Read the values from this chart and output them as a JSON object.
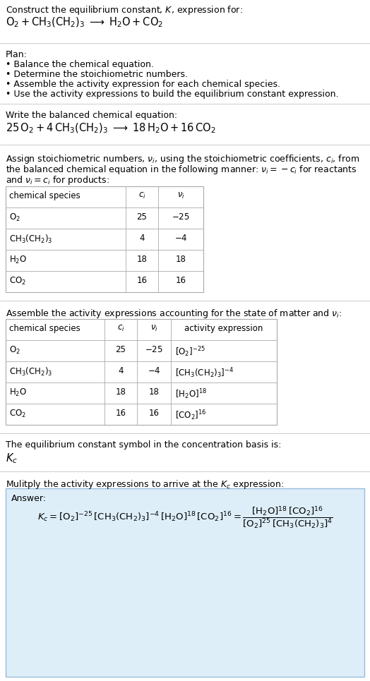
{
  "bg_color": "#ffffff",
  "answer_box_color": "#ddeef8",
  "answer_box_edge": "#99bbdd",
  "font_size": 9.0,
  "font_size_small": 8.5,
  "font_size_math": 10.5,
  "title": "Construct the equilibrium constant, $K$, expression for:",
  "reaction_unbalanced": "$\\mathrm{O_2 + CH_3(CH_2)_3 \\;\\longrightarrow\\; H_2O + CO_2}$",
  "plan_header": "Plan:",
  "plan_items": [
    "\\bullet  Balance the chemical equation.",
    "\\bullet  Determine the stoichiometric numbers.",
    "\\bullet  Assemble the activity expression for each chemical species.",
    "\\bullet  Use the activity expressions to build the equilibrium constant expression."
  ],
  "balanced_header": "Write the balanced chemical equation:",
  "balanced_eq": "$25\\,\\mathrm{O_2} + 4\\,\\mathrm{CH_3(CH_2)_3} \\;\\longrightarrow\\; 18\\,\\mathrm{H_2O} + 16\\,\\mathrm{CO_2}$",
  "stoich_lines": [
    "Assign stoichiometric numbers, $\\nu_i$, using the stoichiometric coefficients, $c_i$, from",
    "the balanced chemical equation in the following manner: $\\nu_i = -c_i$ for reactants",
    "and $\\nu_i = c_i$ for products:"
  ],
  "table1_headers": [
    "chemical species",
    "$c_i$",
    "$\\nu_i$"
  ],
  "table1_rows": [
    [
      "$\\mathrm{O_2}$",
      "25",
      "$-25$"
    ],
    [
      "$\\mathrm{CH_3(CH_2)_3}$",
      "4",
      "$-4$"
    ],
    [
      "$\\mathrm{H_2O}$",
      "18",
      "18"
    ],
    [
      "$\\mathrm{CO_2}$",
      "16",
      "16"
    ]
  ],
  "activity_header": "Assemble the activity expressions accounting for the state of matter and $\\nu_i$:",
  "table2_headers": [
    "chemical species",
    "$c_i$",
    "$\\nu_i$",
    "activity expression"
  ],
  "table2_rows": [
    [
      "$\\mathrm{O_2}$",
      "25",
      "$-25$",
      "$[\\mathrm{O_2}]^{-25}$"
    ],
    [
      "$\\mathrm{CH_3(CH_2)_3}$",
      "4",
      "$-4$",
      "$[\\mathrm{CH_3(CH_2)_3}]^{-4}$"
    ],
    [
      "$\\mathrm{H_2O}$",
      "18",
      "18",
      "$[\\mathrm{H_2O}]^{18}$"
    ],
    [
      "$\\mathrm{CO_2}$",
      "16",
      "16",
      "$[\\mathrm{CO_2}]^{16}$"
    ]
  ],
  "kc_text": "The equilibrium constant symbol in the concentration basis is:",
  "kc_symbol": "$K_c$",
  "multiply_header": "Mulitply the activity expressions to arrive at the $K_c$ expression:",
  "answer_label": "Answer:",
  "kc_expr": "$K_c = [\\mathrm{O_2}]^{-25}\\,[\\mathrm{CH_3(CH_2)_3}]^{-4}\\,[\\mathrm{H_2O}]^{18}\\,[\\mathrm{CO_2}]^{16} = \\dfrac{[\\mathrm{H_2O}]^{18}\\,[\\mathrm{CO_2}]^{16}}{[\\mathrm{O_2}]^{25}\\,[\\mathrm{CH_3(CH_2)_3}]^{4}}$"
}
